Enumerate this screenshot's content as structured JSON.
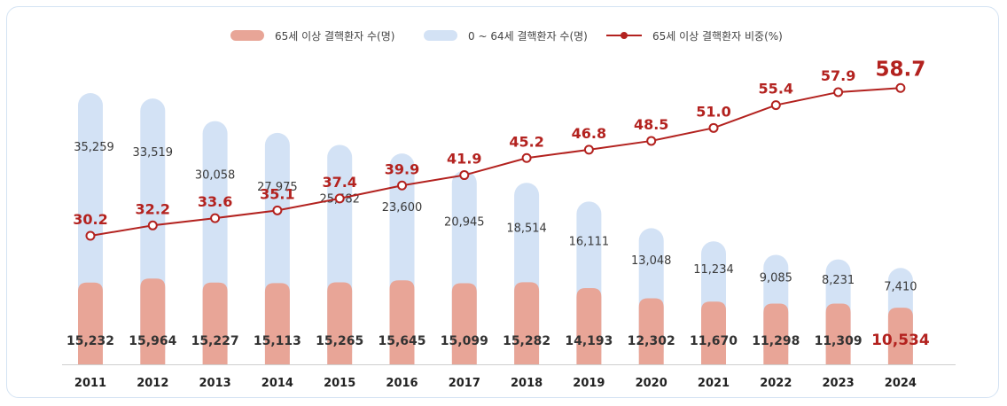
{
  "chart_data": {
    "type": "bar",
    "stacked": true,
    "title": "",
    "categories": [
      "2011",
      "2012",
      "2013",
      "2014",
      "2015",
      "2016",
      "2017",
      "2018",
      "2019",
      "2020",
      "2021",
      "2022",
      "2023",
      "2024"
    ],
    "series": [
      {
        "name": "65세 이상 결핵환자 수(명)",
        "kind": "bar",
        "color": "#e8a597",
        "values": [
          15232,
          15964,
          15227,
          15113,
          15265,
          15645,
          15099,
          15282,
          14193,
          12302,
          11670,
          11298,
          11309,
          10534
        ]
      },
      {
        "name": "0 ~ 64세 결핵환자 수(명)",
        "kind": "bar",
        "color": "#d3e2f5",
        "values": [
          35259,
          33519,
          30058,
          27975,
          25582,
          23600,
          20945,
          18514,
          16111,
          13048,
          11234,
          9085,
          8231,
          7410
        ]
      },
      {
        "name": "65세 이상 결핵환자 비중(%)",
        "kind": "line",
        "color": "#b3221f",
        "values": [
          30.2,
          32.2,
          33.6,
          35.1,
          37.4,
          39.9,
          41.9,
          45.2,
          46.8,
          48.5,
          51.0,
          55.4,
          57.9,
          58.7
        ]
      }
    ],
    "legend_position": "top-center",
    "grid": false,
    "highlight_last": true
  }
}
